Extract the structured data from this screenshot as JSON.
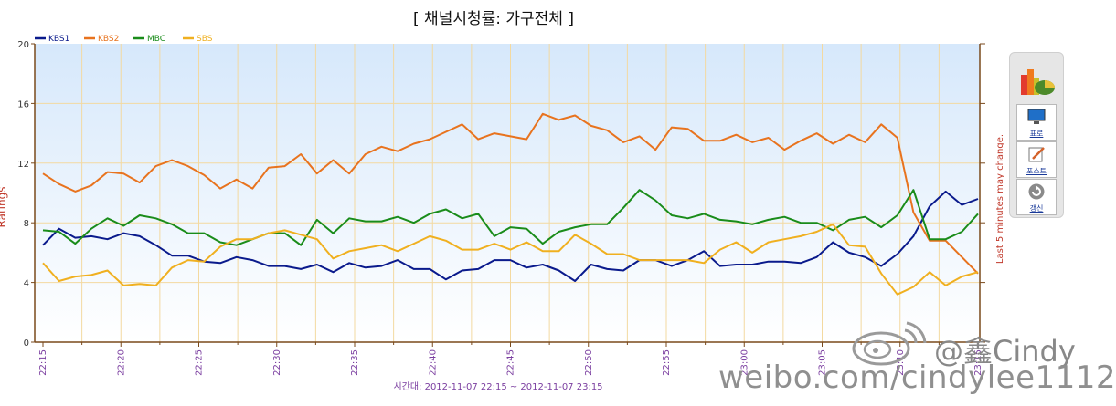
{
  "chart_data": {
    "type": "line",
    "title": "[ 채널시청률: 가구전체 ]",
    "ylabel": "Ratings",
    "xlabel": "시간대: 2012-11-07 22:15 ~ 2012-11-07 23:15",
    "right_note": "Last 5 minutes may change.",
    "ylim": [
      0,
      20
    ],
    "yticks": [
      "0",
      "4",
      "8",
      "12",
      "16",
      "20"
    ],
    "xtick_labels": [
      "22:15",
      "22:20",
      "22:25",
      "22:30",
      "22:35",
      "22:40",
      "22:45",
      "22:50",
      "22:55",
      "23:00",
      "23:05",
      "23:10",
      "23:15"
    ],
    "x_start_minute": 0,
    "x_end_minute": 60,
    "grid": true,
    "legend_position": "top-left",
    "series": [
      {
        "name": "KBS1",
        "color": "#0a1a8c",
        "values": [
          6.5,
          7.6,
          7.0,
          7.1,
          6.9,
          7.3,
          7.1,
          6.5,
          5.8,
          5.8,
          5.4,
          5.3,
          5.7,
          5.5,
          5.1,
          5.1,
          4.9,
          5.2,
          4.7,
          5.3,
          5.0,
          5.1,
          5.5,
          4.9,
          4.9,
          4.2,
          4.8,
          4.9,
          5.5,
          5.5,
          5.0,
          5.2,
          4.8,
          4.1,
          5.2,
          4.9,
          4.8,
          5.5,
          5.5,
          5.1,
          5.5,
          6.1,
          5.1,
          5.2,
          5.2,
          5.4,
          5.4,
          5.3,
          5.7,
          6.7,
          6.0,
          5.7,
          5.1,
          5.9,
          7.1,
          9.1,
          10.1,
          9.2,
          9.6
        ]
      },
      {
        "name": "KBS2",
        "color": "#e8731e",
        "values": [
          11.3,
          10.6,
          10.1,
          10.5,
          11.4,
          11.3,
          10.7,
          11.8,
          12.2,
          11.8,
          11.2,
          10.3,
          10.9,
          10.3,
          11.7,
          11.8,
          12.6,
          11.3,
          12.2,
          11.3,
          12.6,
          13.1,
          12.8,
          13.3,
          13.6,
          14.1,
          14.6,
          13.6,
          14.0,
          13.8,
          13.6,
          15.3,
          14.9,
          15.2,
          14.5,
          14.2,
          13.4,
          13.8,
          12.9,
          14.4,
          14.3,
          13.5,
          13.5,
          13.9,
          13.4,
          13.7,
          12.9,
          13.5,
          14.0,
          13.3,
          13.9,
          13.4,
          14.6,
          13.7,
          8.7,
          6.8,
          6.8,
          5.7,
          4.6
        ]
      },
      {
        "name": "MBC",
        "color": "#1a8c1a",
        "values": [
          7.5,
          7.4,
          6.6,
          7.6,
          8.3,
          7.8,
          8.5,
          8.3,
          7.9,
          7.3,
          7.3,
          6.7,
          6.5,
          6.9,
          7.3,
          7.3,
          6.5,
          8.2,
          7.3,
          8.3,
          8.1,
          8.1,
          8.4,
          8.0,
          8.6,
          8.9,
          8.3,
          8.6,
          7.1,
          7.7,
          7.6,
          6.6,
          7.4,
          7.7,
          7.9,
          7.9,
          9.0,
          10.2,
          9.5,
          8.5,
          8.3,
          8.6,
          8.2,
          8.1,
          7.9,
          8.2,
          8.4,
          8.0,
          8.0,
          7.5,
          8.2,
          8.4,
          7.7,
          8.5,
          10.2,
          6.9,
          6.9,
          7.4,
          8.6
        ]
      },
      {
        "name": "SBS",
        "color": "#f0b020",
        "values": [
          5.3,
          4.1,
          4.4,
          4.5,
          4.8,
          3.8,
          3.9,
          3.8,
          5.0,
          5.5,
          5.4,
          6.4,
          6.9,
          6.9,
          7.3,
          7.5,
          7.2,
          6.9,
          5.6,
          6.1,
          6.3,
          6.5,
          6.1,
          6.6,
          7.1,
          6.8,
          6.2,
          6.2,
          6.6,
          6.2,
          6.7,
          6.1,
          6.1,
          7.2,
          6.6,
          5.9,
          5.9,
          5.5,
          5.5,
          5.5,
          5.5,
          5.3,
          6.2,
          6.7,
          6.0,
          6.7,
          6.9,
          7.1,
          7.4,
          7.9,
          6.5,
          6.4,
          4.6,
          3.2,
          3.7,
          4.7,
          3.8,
          4.4,
          4.7
        ]
      }
    ]
  },
  "side_panel": {
    "buttons": [
      {
        "label": "표로",
        "icon": "monitor-icon"
      },
      {
        "label": "포스트",
        "icon": "notepad-icon"
      },
      {
        "label": "갱신",
        "icon": "refresh-icon"
      }
    ]
  },
  "watermark": {
    "handle": "@鑫Cindy",
    "url": "weibo.com/cindylee1112"
  }
}
